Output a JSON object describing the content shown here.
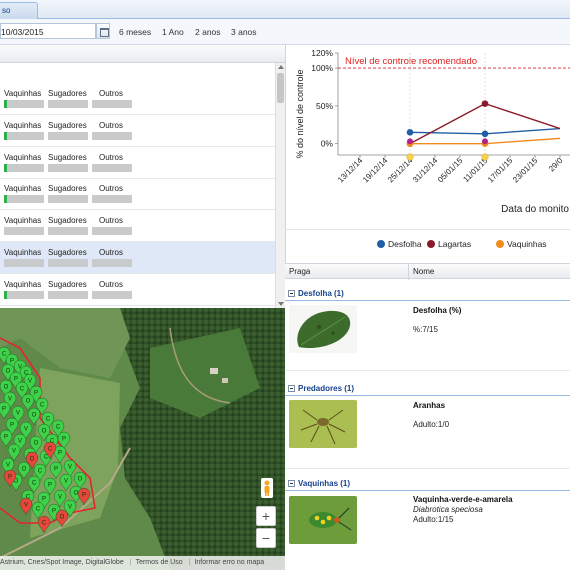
{
  "tab": {
    "label": "so"
  },
  "toolbar": {
    "date_value": "10/03/2015",
    "periods": [
      "6 meses",
      "1 Ano",
      "2 anos",
      "3 anos"
    ]
  },
  "list": {
    "columns": [
      "Vaquinhas",
      "Sugadores",
      "Outros"
    ],
    "rows": [
      {
        "vaquinhas_fill": 0.05,
        "selected": false
      },
      {
        "vaquinhas_fill": 0.05,
        "selected": false
      },
      {
        "vaquinhas_fill": 0.05,
        "selected": false
      },
      {
        "vaquinhas_fill": 0.05,
        "selected": false
      },
      {
        "vaquinhas_fill": 0.0,
        "selected": false
      },
      {
        "vaquinhas_fill": 0.0,
        "selected": true
      },
      {
        "vaquinhas_fill": 0.05,
        "selected": false
      }
    ]
  },
  "map": {
    "attribution": [
      "Astrium, Cnes/Spot Image, DigitalGlobe",
      "Termos de Uso",
      "Informar erro no mapa"
    ],
    "zoom_in": "+",
    "zoom_out": "−",
    "marker_colors": {
      "green": "#3fd14a",
      "red": "#e8453c"
    },
    "marker_letters": [
      "C",
      "P",
      "V",
      "O"
    ]
  },
  "chart_data": {
    "type": "line",
    "ylabel": "% do nível de controle",
    "xlabel": "Data do monito",
    "threshold_label": "Nível de controle recomendado",
    "threshold_value": 100,
    "y_ticks": [
      "120%",
      "100%",
      "50%",
      "0%"
    ],
    "ylim": [
      -15,
      120
    ],
    "x_ticks": [
      "13/12/14",
      "19/12/14",
      "25/12/14",
      "31/12/14",
      "05/01/15",
      "11/01/15",
      "17/01/15",
      "23/01/15",
      "29/0"
    ],
    "series": [
      {
        "name": "Desfolha",
        "color": "#1f5fa5",
        "points": [
          [
            2,
            15
          ],
          [
            5,
            13
          ],
          [
            8,
            20
          ]
        ]
      },
      {
        "name": "Lagartas",
        "color": "#8b1a2b",
        "points": [
          [
            2,
            0
          ],
          [
            5,
            53
          ],
          [
            8,
            20
          ]
        ]
      },
      {
        "name": "Vaquinhas",
        "color": "#f28c1e",
        "points": [
          [
            2,
            0
          ],
          [
            5,
            0
          ],
          [
            8,
            7
          ]
        ]
      }
    ],
    "extra_markers": [
      {
        "x": 2,
        "y": 3,
        "color": "#b51f8a"
      },
      {
        "x": 5,
        "y": 3,
        "color": "#b51f8a"
      }
    ],
    "legend_placement": "bottom"
  },
  "grid": {
    "headers": [
      "Praga",
      "Nome"
    ],
    "groups": [
      {
        "label": "Desfolha (1)",
        "items": [
          {
            "name": "Desfolha (%)",
            "scientific": "",
            "value": "%:7/15"
          }
        ]
      },
      {
        "label": "Predadores (1)",
        "items": [
          {
            "name": "Aranhas",
            "scientific": "",
            "value": "Adulto:1/0"
          }
        ]
      },
      {
        "label": "Vaquinhas (1)",
        "items": [
          {
            "name": "Vaquinha-verde-e-amarela",
            "scientific": "Diabrotica speciosa",
            "value": "Adulto:1/15"
          }
        ]
      }
    ]
  }
}
